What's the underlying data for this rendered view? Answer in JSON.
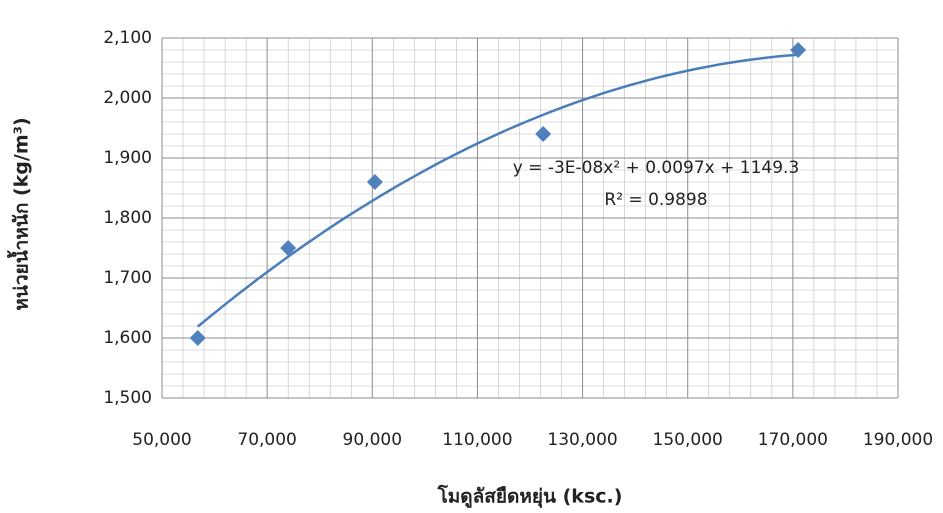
{
  "chart_data": {
    "type": "scatter",
    "x_label": "โมดูลัสยืดหยุ่น (ksc.)",
    "y_label": "หน่วยน้ำหนัก (kg/m³)",
    "annotations": [
      "y = -3E-08x² + 0.0097x + 1149.3",
      "R² = 0.9898"
    ],
    "series": [
      {
        "color": "#4f81bd",
        "trendline_color": "#4a7ebb",
        "x": [
          56800,
          74000,
          90500,
          122500,
          171000
        ],
        "values": [
          1600,
          1750,
          1860,
          1940,
          2080
        ]
      }
    ],
    "xlim": [
      50000,
      190000
    ],
    "xticks": [
      {
        "value": 50000,
        "label": "50,000"
      },
      {
        "value": 70000,
        "label": "70,000"
      },
      {
        "value": 90000,
        "label": "90,000"
      },
      {
        "value": 110000,
        "label": "110,000"
      },
      {
        "value": 130000,
        "label": "130,000"
      },
      {
        "value": 150000,
        "label": "150,000"
      },
      {
        "value": 170000,
        "label": "170,000"
      },
      {
        "value": 190000,
        "label": "190,000"
      }
    ],
    "ylim": [
      1500,
      2100
    ],
    "yticks": [
      {
        "value": 1500,
        "label": "1,500"
      },
      {
        "value": 1600,
        "label": "1,600"
      },
      {
        "value": 1700,
        "label": "1,700"
      },
      {
        "value": 1800,
        "label": "1,800"
      },
      {
        "value": 1900,
        "label": "1,900"
      },
      {
        "value": 2000,
        "label": "2,000"
      },
      {
        "value": 2100,
        "label": "2,100"
      }
    ],
    "grid": true,
    "minor_grid": true
  }
}
